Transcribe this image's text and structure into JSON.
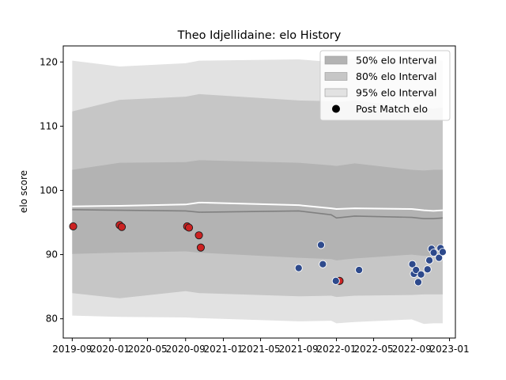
{
  "chart_data": {
    "type": "area",
    "title": "Theo Idjellidaine: elo History",
    "xlabel": "",
    "ylabel": "elo score",
    "x_axis_type": "date",
    "xlim": [
      "2019-08-03",
      "2023-01-20"
    ],
    "ylim": [
      77,
      122.5
    ],
    "xticks": [
      "2019-09-01",
      "2020-01-01",
      "2020-05-01",
      "2020-09-01",
      "2021-01-01",
      "2021-05-01",
      "2021-09-01",
      "2022-01-01",
      "2022-05-01",
      "2022-09-01",
      "2023-01-01"
    ],
    "xtick_labels": [
      "2019-09",
      "2020-01",
      "2020-05",
      "2020-09",
      "2021-01",
      "2021-05",
      "2021-09",
      "2022-01",
      "2022-05",
      "2022-09",
      "2023-01"
    ],
    "yticks": [
      80,
      90,
      100,
      110,
      120
    ],
    "ytick_labels": [
      "80",
      "90",
      "100",
      "110",
      "120"
    ],
    "grid": false,
    "legend_position": "top-right",
    "legend": [
      {
        "label": "50% elo Interval",
        "kind": "patch",
        "color": "#b3b3b3"
      },
      {
        "label": "80% elo Interval",
        "kind": "patch",
        "color": "#c6c6c6"
      },
      {
        "label": "95% elo Interval",
        "kind": "patch",
        "color": "#e2e2e2"
      },
      {
        "label": "Post Match elo",
        "kind": "marker",
        "color": "#000000"
      }
    ],
    "bands": {
      "dates": [
        "2019-09-01",
        "2020-02-01",
        "2020-09-01",
        "2020-10-15",
        "2021-09-01",
        "2021-12-15",
        "2022-01-01",
        "2022-03-01",
        "2022-09-01",
        "2022-10-10",
        "2022-11-10",
        "2022-12-10"
      ],
      "median": [
        97.0,
        96.9,
        96.8,
        96.6,
        96.8,
        96.2,
        95.7,
        96.0,
        95.8,
        95.6,
        95.6,
        95.7
      ],
      "band_50": {
        "low": [
          90.1,
          90.3,
          90.5,
          90.3,
          89.5,
          89.3,
          89.1,
          89.4,
          90.0,
          89.8,
          89.8,
          89.9
        ],
        "high": [
          103.2,
          104.3,
          104.4,
          104.7,
          104.3,
          103.9,
          103.8,
          104.2,
          103.2,
          103.1,
          103.2,
          103.2
        ]
      },
      "band_80": {
        "low": [
          84.0,
          83.2,
          84.3,
          84.0,
          83.5,
          83.6,
          83.4,
          83.6,
          83.7,
          83.8,
          83.8,
          83.8
        ],
        "high": [
          112.3,
          114.1,
          114.6,
          115.0,
          114.0,
          113.9,
          113.7,
          114.0,
          112.9,
          112.8,
          112.7,
          112.9
        ]
      },
      "band_95": {
        "low": [
          80.5,
          80.3,
          80.2,
          80.1,
          79.6,
          79.7,
          79.3,
          79.5,
          79.9,
          79.2,
          79.3,
          79.3
        ],
        "high": [
          120.2,
          119.3,
          119.8,
          120.2,
          120.4,
          120.0,
          120.3,
          120.5,
          119.9,
          120.2,
          120.3,
          120.2
        ]
      },
      "mean": [
        97.5,
        97.6,
        97.8,
        98.1,
        97.7,
        97.2,
        97.1,
        97.2,
        97.1,
        96.9,
        96.8,
        96.9
      ]
    },
    "series": [
      {
        "name": "Post Match elo",
        "marker_color": "#cc2222",
        "points": [
          {
            "x": "2019-09-04",
            "y": 94.4
          },
          {
            "x": "2020-02-01",
            "y": 94.6
          },
          {
            "x": "2020-02-08",
            "y": 94.3
          },
          {
            "x": "2020-09-06",
            "y": 94.4
          },
          {
            "x": "2020-09-12",
            "y": 94.2
          },
          {
            "x": "2020-10-14",
            "y": 93.0
          },
          {
            "x": "2020-10-20",
            "y": 91.1
          },
          {
            "x": "2022-01-11",
            "y": 85.9
          }
        ]
      },
      {
        "marker_color": "#2e4a8c",
        "points": [
          {
            "x": "2021-09-01",
            "y": 87.9
          },
          {
            "x": "2021-11-12",
            "y": 91.5
          },
          {
            "x": "2021-11-18",
            "y": 88.5
          },
          {
            "x": "2021-12-30",
            "y": 85.9
          },
          {
            "x": "2022-03-15",
            "y": 87.6
          },
          {
            "x": "2022-09-03",
            "y": 88.5
          },
          {
            "x": "2022-09-08",
            "y": 87.0
          },
          {
            "x": "2022-09-15",
            "y": 87.6
          },
          {
            "x": "2022-09-22",
            "y": 85.7
          },
          {
            "x": "2022-10-01",
            "y": 86.9
          },
          {
            "x": "2022-10-22",
            "y": 87.7
          },
          {
            "x": "2022-10-28",
            "y": 89.1
          },
          {
            "x": "2022-11-04",
            "y": 90.9
          },
          {
            "x": "2022-11-11",
            "y": 90.3
          },
          {
            "x": "2022-11-28",
            "y": 89.5
          },
          {
            "x": "2022-12-03",
            "y": 91.0
          },
          {
            "x": "2022-12-10",
            "y": 90.4
          }
        ]
      }
    ]
  }
}
